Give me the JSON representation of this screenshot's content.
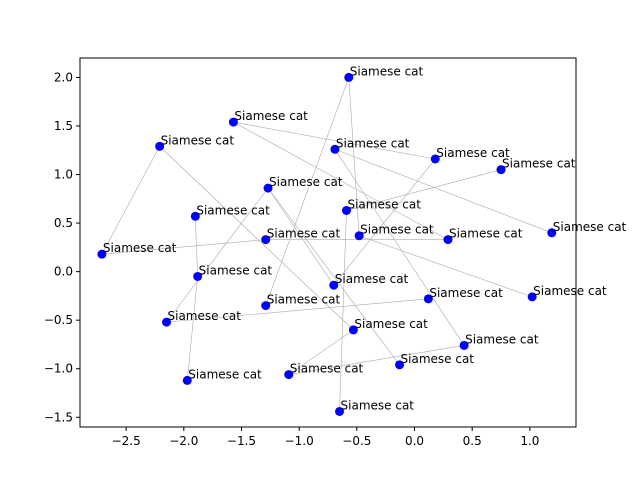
{
  "chart_data": {
    "type": "scatter",
    "title": "",
    "xlabel": "",
    "ylabel": "",
    "xlim": [
      -2.9,
      1.4
    ],
    "ylim": [
      -1.6,
      2.2
    ],
    "xticks": [
      -2.5,
      -2.0,
      -1.5,
      -1.0,
      -0.5,
      0.0,
      0.5,
      1.0
    ],
    "xtick_labels": [
      "−2.5",
      "−2.0",
      "−1.5",
      "−1.0",
      "−0.5",
      "0.0",
      "0.5",
      "1.0"
    ],
    "yticks": [
      -1.5,
      -1.0,
      -0.5,
      0.0,
      0.5,
      1.0,
      1.5,
      2.0
    ],
    "ytick_labels": [
      "−1.5",
      "−1.0",
      "−0.5",
      "0.0",
      "0.5",
      "1.0",
      "1.5",
      "2.0"
    ],
    "grid": false,
    "point_color": "#0000ff",
    "edge_color": "#aaaaaa",
    "points": [
      {
        "x": -0.57,
        "y": 2.0,
        "label": "Siamese cat"
      },
      {
        "x": -1.57,
        "y": 1.54,
        "label": "Siamese cat"
      },
      {
        "x": -2.21,
        "y": 1.29,
        "label": "Siamese cat"
      },
      {
        "x": -0.69,
        "y": 1.26,
        "label": "Siamese cat"
      },
      {
        "x": 0.18,
        "y": 1.16,
        "label": "Siamese cat"
      },
      {
        "x": 0.75,
        "y": 1.05,
        "label": "Siamese cat"
      },
      {
        "x": -1.27,
        "y": 0.86,
        "label": "Siamese cat"
      },
      {
        "x": -1.9,
        "y": 0.57,
        "label": "Siamese cat"
      },
      {
        "x": -0.59,
        "y": 0.63,
        "label": "Siamese cat"
      },
      {
        "x": -0.48,
        "y": 0.37,
        "label": "Siamese cat"
      },
      {
        "x": 1.19,
        "y": 0.4,
        "label": "Siamese cat"
      },
      {
        "x": -1.29,
        "y": 0.33,
        "label": "Siamese cat"
      },
      {
        "x": 0.29,
        "y": 0.33,
        "label": "Siamese cat"
      },
      {
        "x": -2.71,
        "y": 0.18,
        "label": "Siamese cat"
      },
      {
        "x": -1.88,
        "y": -0.05,
        "label": "Siamese cat"
      },
      {
        "x": -0.7,
        "y": -0.14,
        "label": "Siamese cat"
      },
      {
        "x": 0.12,
        "y": -0.28,
        "label": "Siamese cat"
      },
      {
        "x": 1.02,
        "y": -0.26,
        "label": "Siamese cat"
      },
      {
        "x": -1.29,
        "y": -0.35,
        "label": "Siamese cat"
      },
      {
        "x": -2.15,
        "y": -0.52,
        "label": "Siamese cat"
      },
      {
        "x": -0.53,
        "y": -0.6,
        "label": "Siamese cat"
      },
      {
        "x": 0.43,
        "y": -0.76,
        "label": "Siamese cat"
      },
      {
        "x": -0.13,
        "y": -0.96,
        "label": "Siamese cat"
      },
      {
        "x": -1.09,
        "y": -1.06,
        "label": "Siamese cat"
      },
      {
        "x": -1.97,
        "y": -1.12,
        "label": "Siamese cat"
      },
      {
        "x": -0.65,
        "y": -1.44,
        "label": "Siamese cat"
      }
    ],
    "edges": [
      [
        0,
        18
      ],
      [
        0,
        9
      ],
      [
        1,
        4
      ],
      [
        1,
        12
      ],
      [
        2,
        13
      ],
      [
        2,
        20
      ],
      [
        3,
        10
      ],
      [
        3,
        21
      ],
      [
        4,
        15
      ],
      [
        5,
        8
      ],
      [
        6,
        15
      ],
      [
        6,
        19
      ],
      [
        7,
        14
      ],
      [
        8,
        25
      ],
      [
        9,
        17
      ],
      [
        11,
        13
      ],
      [
        11,
        12
      ],
      [
        14,
        24
      ],
      [
        16,
        19
      ],
      [
        20,
        23
      ],
      [
        21,
        23
      ],
      [
        22,
        6
      ]
    ]
  }
}
